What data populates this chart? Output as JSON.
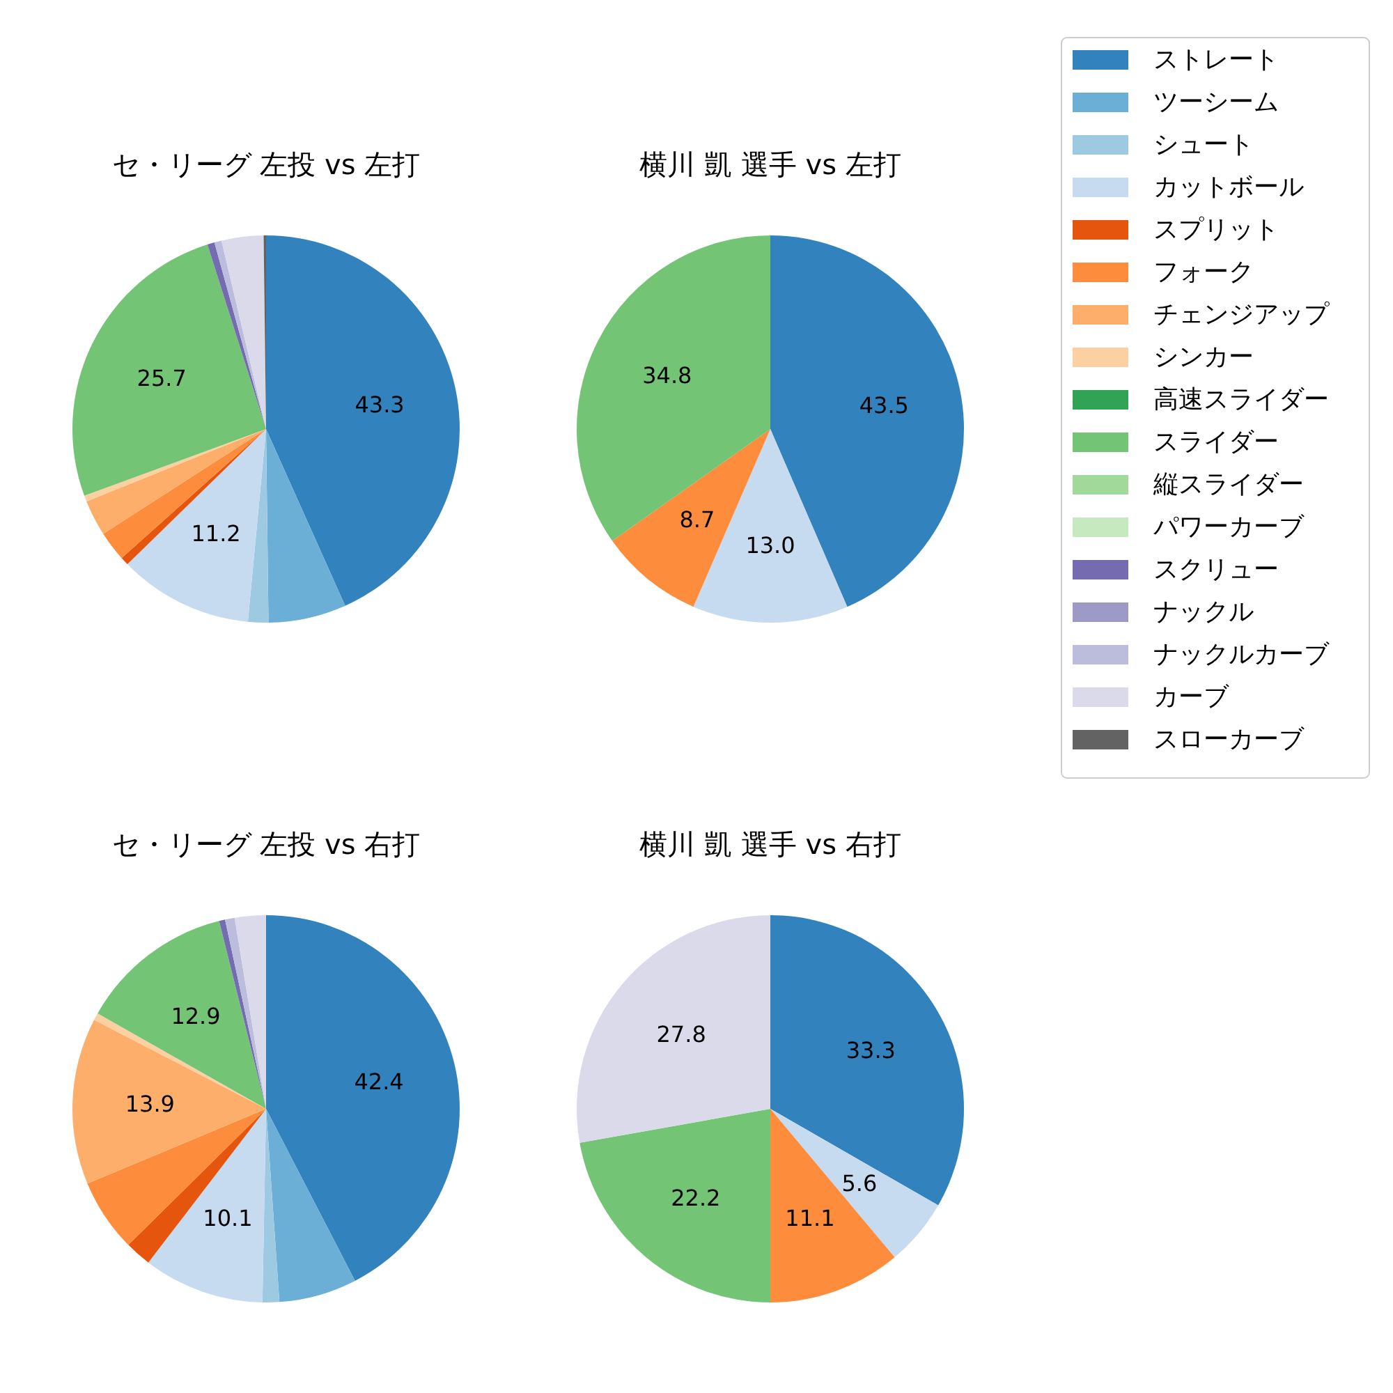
{
  "chart_data": [
    {
      "type": "pie",
      "title": "セ・リーグ 左投 vs 左打",
      "categories": [
        null,
        null,
        null,
        null,
        null,
        null,
        null,
        null,
        null,
        null,
        null,
        null,
        null
      ],
      "values": [
        43.3,
        6.5,
        1.7,
        11.2,
        0.7,
        2.5,
        3.0,
        0.5,
        25.7,
        0.6,
        0.6,
        3.5,
        0.2
      ],
      "value_labels": [
        "43.3",
        null,
        null,
        "11.2",
        null,
        null,
        null,
        null,
        "25.7",
        null,
        null,
        null,
        null
      ],
      "colors": [
        "#3182bd",
        "#6baed6",
        "#9ecae1",
        "#c6dbef",
        "#e6550d",
        "#fd8d3c",
        "#fdae6b",
        "#fdd0a2",
        "#74c476",
        "#756bb1",
        "#bcbddc",
        "#dadaeb",
        "#636363"
      ]
    },
    {
      "type": "pie",
      "title": "横川 凱 選手 vs 左打",
      "legend": "right",
      "categories": [
        "ストレート",
        "ツーシーム",
        "シュート",
        "カットボール",
        "スプリット",
        "フォーク",
        "チェンジアップ",
        "シンカー",
        "高速スライダー",
        "スライダー",
        "縦スライダー",
        "パワーカーブ",
        "スクリュー",
        "ナックル",
        "ナックルカーブ",
        "カーブ",
        "スローカーブ"
      ],
      "values": [
        43.5,
        0,
        0,
        13.0,
        0,
        8.7,
        0,
        0,
        0,
        34.8,
        0,
        0,
        0,
        0,
        0,
        0,
        0
      ],
      "value_labels": [
        "43.5",
        null,
        null,
        "13.0",
        null,
        "8.7",
        null,
        null,
        null,
        "34.8",
        null,
        null,
        null,
        null,
        null,
        null,
        null
      ],
      "colors": [
        "#3182bd",
        "#6baed6",
        "#9ecae1",
        "#c6dbef",
        "#e6550d",
        "#fd8d3c",
        "#fdae6b",
        "#fdd0a2",
        "#31a354",
        "#74c476",
        "#a1d99b",
        "#c7e9c0",
        "#756bb1",
        "#9e9ac8",
        "#bcbddc",
        "#dadaeb",
        "#636363"
      ]
    },
    {
      "type": "pie",
      "title": "セ・リーグ 左投 vs 右打",
      "categories": [
        null,
        null,
        null,
        null,
        null,
        null,
        null,
        null,
        null,
        null,
        null,
        null
      ],
      "values": [
        42.4,
        6.5,
        1.4,
        10.1,
        2.2,
        6.1,
        13.9,
        0.6,
        12.9,
        0.5,
        0.8,
        2.6
      ],
      "value_labels": [
        "42.4",
        null,
        null,
        "10.1",
        null,
        null,
        "13.9",
        null,
        "12.9",
        null,
        null,
        null
      ],
      "colors": [
        "#3182bd",
        "#6baed6",
        "#9ecae1",
        "#c6dbef",
        "#e6550d",
        "#fd8d3c",
        "#fdae6b",
        "#fdd0a2",
        "#74c476",
        "#756bb1",
        "#bcbddc",
        "#dadaeb"
      ]
    },
    {
      "type": "pie",
      "title": "横川 凱 選手 vs 右打",
      "categories": [
        null,
        null,
        null,
        null,
        null
      ],
      "values": [
        33.3,
        5.6,
        11.1,
        22.2,
        27.8
      ],
      "value_labels": [
        "33.3",
        "5.6",
        "11.1",
        "22.2",
        "27.8"
      ],
      "colors": [
        "#3182bd",
        "#c6dbef",
        "#fd8d3c",
        "#74c476",
        "#dadaeb"
      ]
    }
  ]
}
